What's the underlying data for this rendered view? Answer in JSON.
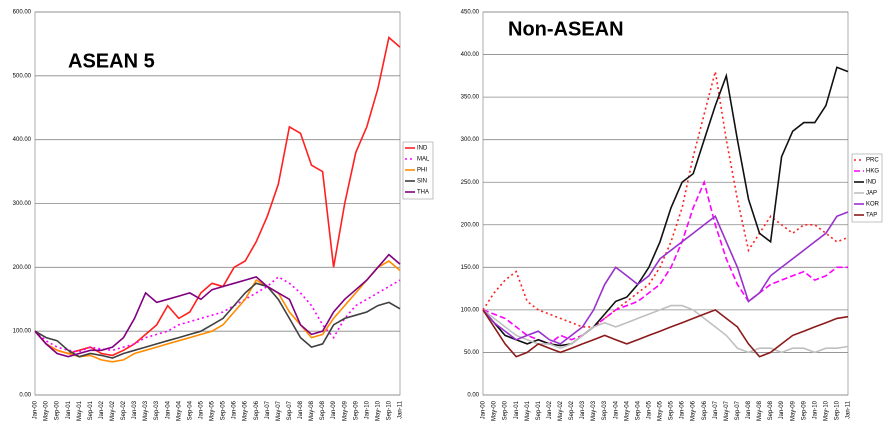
{
  "chart_data": [
    {
      "type": "line",
      "title": "ASEAN 5",
      "categories": [
        "Jan-00",
        "May-00",
        "Sep-00",
        "Jan-01",
        "May-01",
        "Sep-01",
        "Jan-02",
        "May-02",
        "Sep-02",
        "Jan-03",
        "May-03",
        "Sep-03",
        "Jan-04",
        "May-04",
        "Sep-04",
        "Jan-05",
        "May-05",
        "Sep-05",
        "Jan-06",
        "May-06",
        "Sep-06",
        "Jan-07",
        "May-07",
        "Sep-07",
        "Jan-08",
        "May-08",
        "Sep-08",
        "Jan-09",
        "May-09",
        "Sep-09",
        "Jan-10",
        "May-10",
        "Sep-10",
        "Jan-11"
      ],
      "ylim": [
        0,
        600
      ],
      "yticks": [
        {
          "value": 0,
          "label": "0.00"
        },
        {
          "value": 100,
          "label": "100.00"
        },
        {
          "value": 200,
          "label": "200.00"
        },
        {
          "value": 300,
          "label": "300.00"
        },
        {
          "value": 400,
          "label": "400.00"
        },
        {
          "value": 500,
          "label": "500.00"
        },
        {
          "value": 600,
          "label": "600.00"
        }
      ],
      "grid": true,
      "series": [
        {
          "name": "IND",
          "color": "#ff2020",
          "dash": "solid",
          "values": [
            100,
            80,
            70,
            65,
            70,
            75,
            65,
            62,
            70,
            80,
            95,
            110,
            140,
            120,
            130,
            160,
            175,
            170,
            200,
            210,
            240,
            280,
            330,
            420,
            410,
            360,
            350,
            200,
            300,
            380,
            420,
            480,
            560,
            545
          ]
        },
        {
          "name": "MAL",
          "color": "#ff00ff",
          "dash": "dotted",
          "values": [
            100,
            85,
            75,
            70,
            68,
            75,
            72,
            70,
            75,
            80,
            90,
            95,
            100,
            110,
            115,
            120,
            125,
            130,
            140,
            150,
            160,
            170,
            185,
            175,
            160,
            140,
            110,
            90,
            120,
            140,
            150,
            160,
            170,
            180
          ]
        },
        {
          "name": "PHI",
          "color": "#ff8c00",
          "dash": "solid",
          "values": [
            100,
            80,
            70,
            65,
            60,
            62,
            55,
            52,
            55,
            65,
            70,
            75,
            80,
            85,
            90,
            95,
            100,
            110,
            130,
            150,
            180,
            170,
            160,
            130,
            110,
            90,
            95,
            120,
            140,
            160,
            180,
            200,
            210,
            195
          ]
        },
        {
          "name": "SIN",
          "color": "#404040",
          "dash": "solid",
          "values": [
            100,
            90,
            85,
            70,
            60,
            65,
            62,
            58,
            65,
            70,
            75,
            80,
            85,
            90,
            95,
            100,
            110,
            120,
            140,
            160,
            175,
            170,
            150,
            120,
            90,
            75,
            80,
            110,
            120,
            125,
            130,
            140,
            145,
            135
          ]
        },
        {
          "name": "THA",
          "color": "#800080",
          "dash": "solid",
          "values": [
            100,
            80,
            65,
            60,
            65,
            70,
            70,
            75,
            90,
            120,
            160,
            145,
            150,
            155,
            160,
            150,
            165,
            170,
            175,
            180,
            185,
            170,
            160,
            150,
            110,
            95,
            100,
            130,
            150,
            165,
            180,
            200,
            220,
            205
          ]
        }
      ]
    },
    {
      "type": "line",
      "title": "Non-ASEAN",
      "categories": [
        "Jan-00",
        "May-00",
        "Sep-00",
        "Jan-01",
        "May-01",
        "Sep-01",
        "Jan-02",
        "May-02",
        "Sep-02",
        "Jan-03",
        "May-03",
        "Sep-03",
        "Jan-04",
        "May-04",
        "Sep-04",
        "Jan-05",
        "May-05",
        "Sep-05",
        "Jan-06",
        "May-06",
        "Sep-06",
        "Jan-07",
        "May-07",
        "Sep-07",
        "Jan-08",
        "May-08",
        "Sep-08",
        "Jan-09",
        "May-09",
        "Sep-09",
        "Jan-10",
        "May-10",
        "Sep-10",
        "Jan-11"
      ],
      "ylim": [
        0,
        450
      ],
      "yticks": [
        {
          "value": 0,
          "label": "0.00"
        },
        {
          "value": 50,
          "label": "50.00"
        },
        {
          "value": 100,
          "label": "100.00"
        },
        {
          "value": 150,
          "label": "150.00"
        },
        {
          "value": 200,
          "label": "200.00"
        },
        {
          "value": 250,
          "label": "250.00"
        },
        {
          "value": 300,
          "label": "300.00"
        },
        {
          "value": 350,
          "label": "350.00"
        },
        {
          "value": 400,
          "label": "400.00"
        },
        {
          "value": 450,
          "label": "450.00"
        }
      ],
      "grid": true,
      "series": [
        {
          "name": "PRC",
          "color": "#ff2020",
          "dash": "dotted",
          "values": [
            100,
            120,
            135,
            145,
            110,
            100,
            95,
            90,
            85,
            80,
            80,
            90,
            100,
            110,
            120,
            130,
            150,
            180,
            220,
            280,
            330,
            380,
            300,
            230,
            170,
            190,
            210,
            200,
            190,
            200,
            200,
            190,
            180,
            185
          ]
        },
        {
          "name": "HKG",
          "color": "#ff00ff",
          "dash": "dashed",
          "values": [
            100,
            95,
            90,
            80,
            70,
            65,
            60,
            70,
            65,
            70,
            80,
            90,
            100,
            105,
            110,
            120,
            130,
            150,
            180,
            220,
            250,
            200,
            160,
            130,
            110,
            120,
            130,
            135,
            140,
            145,
            135,
            140,
            150,
            150
          ]
        },
        {
          "name": "IND",
          "color": "#111111",
          "dash": "solid",
          "values": [
            100,
            85,
            70,
            65,
            60,
            65,
            60,
            58,
            60,
            70,
            80,
            95,
            110,
            115,
            130,
            150,
            180,
            220,
            250,
            260,
            300,
            340,
            375,
            300,
            230,
            190,
            180,
            280,
            310,
            320,
            320,
            340,
            385,
            380
          ]
        },
        {
          "name": "JAP",
          "color": "#c0c0c0",
          "dash": "solid",
          "values": [
            100,
            90,
            80,
            70,
            65,
            60,
            60,
            55,
            60,
            70,
            80,
            85,
            80,
            85,
            90,
            95,
            100,
            105,
            105,
            100,
            90,
            80,
            70,
            55,
            50,
            55,
            55,
            50,
            55,
            55,
            50,
            55,
            55,
            57
          ]
        },
        {
          "name": "KOR",
          "color": "#9932cc",
          "dash": "solid",
          "values": [
            100,
            85,
            75,
            65,
            70,
            75,
            65,
            60,
            70,
            80,
            100,
            130,
            150,
            140,
            130,
            140,
            160,
            170,
            180,
            190,
            200,
            210,
            180,
            150,
            110,
            120,
            140,
            150,
            160,
            170,
            180,
            190,
            210,
            215
          ]
        },
        {
          "name": "TAP",
          "color": "#8b1a1a",
          "dash": "solid",
          "values": [
            100,
            80,
            60,
            45,
            50,
            60,
            55,
            50,
            55,
            60,
            65,
            70,
            65,
            60,
            65,
            70,
            75,
            80,
            85,
            90,
            95,
            100,
            90,
            80,
            60,
            45,
            50,
            60,
            70,
            75,
            80,
            85,
            90,
            92
          ]
        }
      ]
    }
  ]
}
